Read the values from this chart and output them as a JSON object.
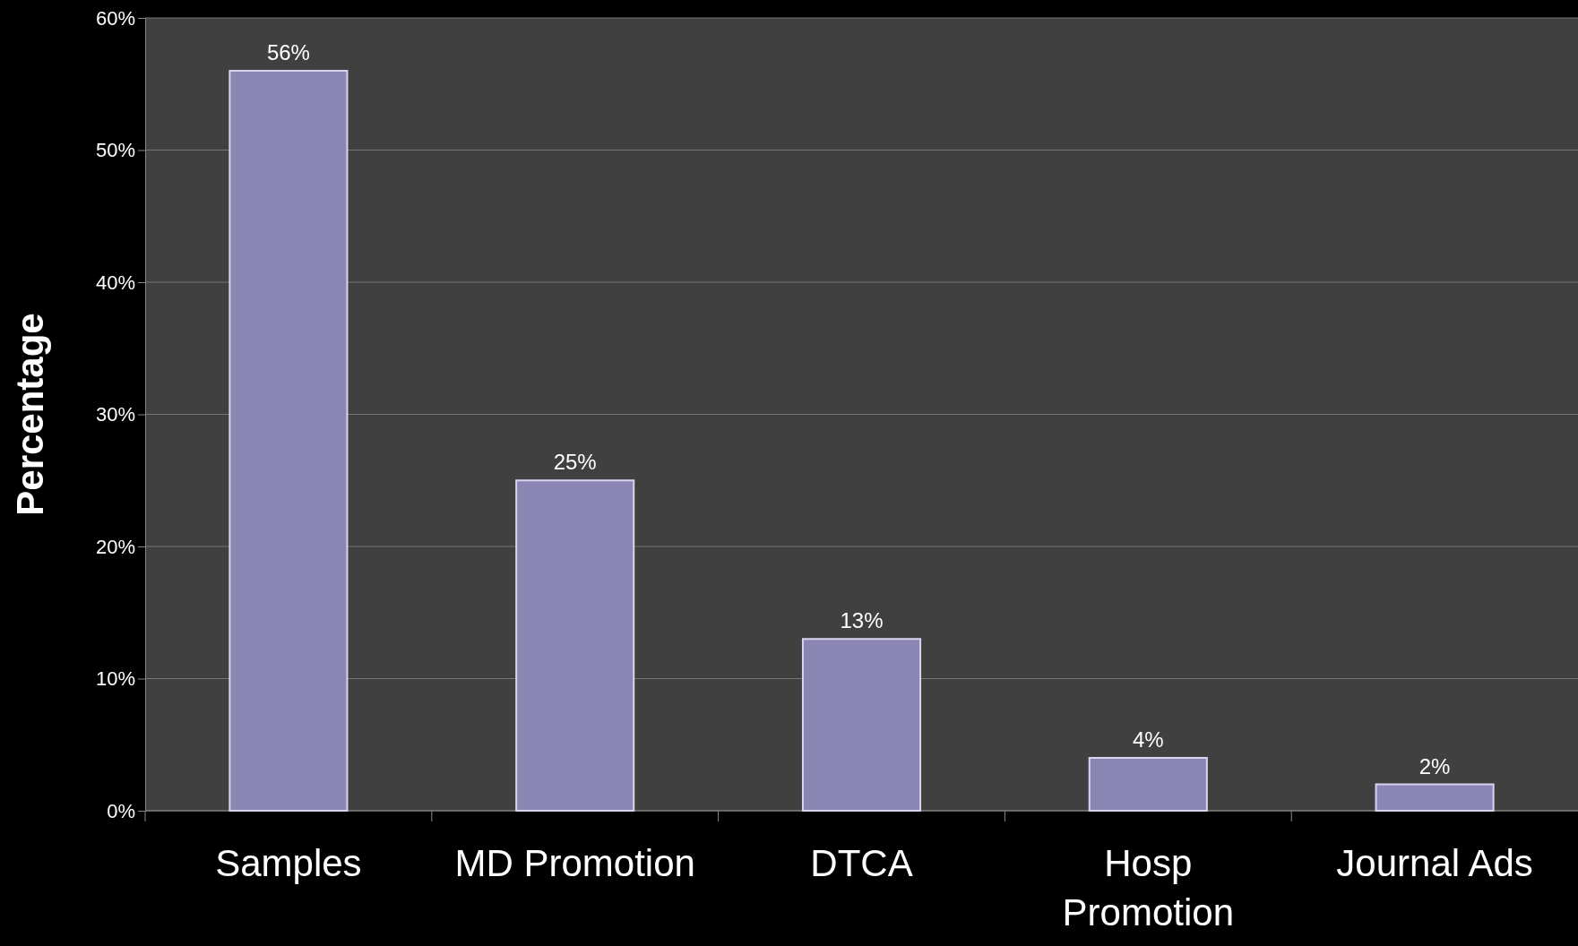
{
  "chart_data": {
    "type": "bar",
    "ylabel": "Percentage",
    "categories": [
      "Samples",
      "MD Promotion",
      "DTCA",
      "Hosp Promotion",
      "Journal Ads"
    ],
    "values": [
      56,
      25,
      13,
      4,
      2
    ],
    "value_labels": [
      "56%",
      "25%",
      "13%",
      "4%",
      "2%"
    ],
    "color": "#8b86b3",
    "ylim": [
      0,
      60
    ],
    "yticks": [
      {
        "value": 0,
        "label": "0%"
      },
      {
        "value": 10,
        "label": "10%"
      },
      {
        "value": 20,
        "label": "20%"
      },
      {
        "value": 30,
        "label": "30%"
      },
      {
        "value": 40,
        "label": "40%"
      },
      {
        "value": 50,
        "label": "50%"
      },
      {
        "value": 60,
        "label": "60%"
      }
    ],
    "grid": "y"
  }
}
